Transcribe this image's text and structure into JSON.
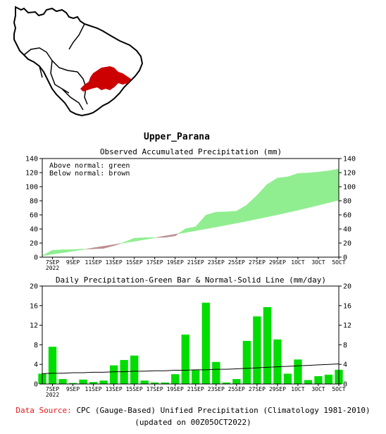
{
  "region_title": "Upper_Parana",
  "colors": {
    "region_fill": "#cc0000",
    "above_normal": "#90ee90",
    "below_normal": "#bc8f8f",
    "daily_bar": "#00dd00",
    "data_source_label": "#e8171b"
  },
  "footer": {
    "source_label": "Data Source:",
    "source_text": "CPC (Gauge-Based) Unified Precipitation (Climatology 1981-2010)",
    "updated_text": "(updated on 00Z05OCT2022)"
  },
  "chart_data": [
    {
      "type": "area",
      "title": "Observed Accumulated Precipitation (mm)",
      "legend": [
        "Above normal: green",
        "Below normal: brown"
      ],
      "legend_placement": "top-left",
      "x_tick_labels": [
        "7SEP",
        "9SEP",
        "11SEP",
        "13SEP",
        "15SEP",
        "17SEP",
        "19SEP",
        "21SEP",
        "23SEP",
        "25SEP",
        "27SEP",
        "29SEP",
        "1OCT",
        "3OCT",
        "5OCT"
      ],
      "x_first_label_year": "2022",
      "ylim": [
        0,
        140
      ],
      "y_ticks": [
        0,
        20,
        40,
        60,
        80,
        100,
        120,
        140
      ],
      "x": [
        "6SEP",
        "7SEP",
        "8SEP",
        "9SEP",
        "10SEP",
        "11SEP",
        "12SEP",
        "13SEP",
        "14SEP",
        "15SEP",
        "16SEP",
        "17SEP",
        "18SEP",
        "19SEP",
        "20SEP",
        "21SEP",
        "22SEP",
        "23SEP",
        "24SEP",
        "25SEP",
        "26SEP",
        "27SEP",
        "28SEP",
        "29SEP",
        "30SEP",
        "1OCT",
        "2OCT",
        "3OCT",
        "4OCT",
        "5OCT"
      ],
      "series": [
        {
          "name": "Observed",
          "values": [
            2.1,
            9.7,
            10.6,
            10.7,
            11.5,
            11.8,
            12.5,
            16.3,
            21.1,
            26.9,
            27.6,
            27.9,
            28.2,
            30.3,
            40.3,
            43.1,
            59.6,
            64.0,
            64.3,
            65.3,
            74.0,
            87.7,
            103.3,
            112.3,
            114.0,
            118.8,
            119.5,
            120.8,
            122.5,
            125.2
          ]
        },
        {
          "name": "Normal",
          "values": [
            2.0,
            4.2,
            6.4,
            8.6,
            10.9,
            13.2,
            15.5,
            17.8,
            20.2,
            22.6,
            25.0,
            27.5,
            30.0,
            32.5,
            35.0,
            37.6,
            40.2,
            42.9,
            45.6,
            48.4,
            51.3,
            54.2,
            57.2,
            60.3,
            63.5,
            66.8,
            70.2,
            73.7,
            77.3,
            81.0
          ]
        }
      ]
    },
    {
      "type": "bar",
      "title": "Daily Precipitation-Green Bar & Normal-Solid Line (mm/day)",
      "x_tick_labels": [
        "7SEP",
        "9SEP",
        "11SEP",
        "13SEP",
        "15SEP",
        "17SEP",
        "19SEP",
        "21SEP",
        "23SEP",
        "25SEP",
        "27SEP",
        "29SEP",
        "1OCT",
        "3OCT",
        "5OCT"
      ],
      "x_first_label_year": "2022",
      "ylim": [
        0,
        20
      ],
      "y_ticks": [
        0,
        4,
        8,
        12,
        16,
        20
      ],
      "categories": [
        "6SEP",
        "7SEP",
        "8SEP",
        "9SEP",
        "10SEP",
        "11SEP",
        "12SEP",
        "13SEP",
        "14SEP",
        "15SEP",
        "16SEP",
        "17SEP",
        "18SEP",
        "19SEP",
        "20SEP",
        "21SEP",
        "22SEP",
        "23SEP",
        "24SEP",
        "25SEP",
        "26SEP",
        "27SEP",
        "28SEP",
        "29SEP",
        "30SEP",
        "1OCT",
        "2OCT",
        "3OCT",
        "4OCT",
        "5OCT"
      ],
      "series": [
        {
          "name": "Daily Precipitation",
          "values": [
            2.1,
            7.6,
            1.0,
            0.2,
            0.9,
            0.4,
            0.7,
            3.8,
            4.9,
            5.8,
            0.7,
            0.3,
            0.3,
            2.0,
            10.1,
            2.8,
            16.6,
            4.5,
            0.3,
            1.0,
            8.8,
            13.8,
            15.7,
            9.1,
            2.1,
            5.0,
            0.8,
            1.6,
            1.9,
            2.9
          ]
        },
        {
          "name": "Normal",
          "values": [
            2.1,
            2.2,
            2.2,
            2.3,
            2.3,
            2.4,
            2.4,
            2.5,
            2.5,
            2.6,
            2.6,
            2.7,
            2.7,
            2.8,
            2.8,
            2.9,
            2.9,
            3.0,
            3.0,
            3.1,
            3.2,
            3.3,
            3.4,
            3.5,
            3.6,
            3.7,
            3.8,
            3.9,
            4.0,
            4.1
          ]
        }
      ]
    }
  ]
}
